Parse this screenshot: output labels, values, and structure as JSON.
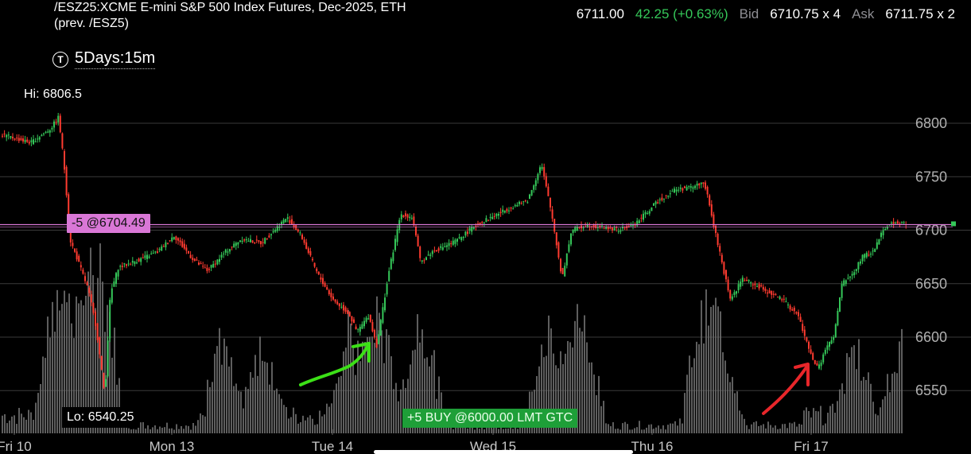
{
  "header": {
    "title_line1": "/ESZ25:XCME E-mini S&P 500 Index Futures, Dec-2025, ETH",
    "title_line2": "(prev. /ESZ5)",
    "last": "6711.00",
    "change": "42.25 (+0.63%)",
    "bid_label": "Bid",
    "bid": "6710.75 x 4",
    "ask_label": "Ask",
    "ask": "6711.75 x 2"
  },
  "timeframe": {
    "icon": "clock-icon",
    "label": "5Days:15m"
  },
  "hi_label": "Hi: 6806.5",
  "lo_label": "Lo: 6540.25",
  "orders": {
    "sell_label": "-5 @6704.49",
    "buy_label": "+5 BUY @6000.00 LMT GTC"
  },
  "colors": {
    "up": "#35c759",
    "down": "#ff3b30",
    "volume": "#6e6e6e",
    "grid": "#3a3a3a",
    "sell_line": "#d977d6",
    "buy_badge": "#1e9f38",
    "annotation_green": "#3ce017",
    "annotation_red": "#e8262a"
  },
  "chart_data": {
    "type": "candlestick",
    "ylim": [
      6510,
      6835
    ],
    "y_ticks": [
      6800,
      6750,
      6700,
      6650,
      6600,
      6550
    ],
    "x_labels": [
      "Fri 10",
      "Mon 13",
      "Tue 14",
      "Wed 15",
      "Thu 16",
      "Fri 17"
    ],
    "sell_order_price": 6704.49,
    "buy_order_price": 6000.0,
    "hi": 6806.5,
    "lo": 6540.25,
    "price_path": [
      [
        0,
        6790
      ],
      [
        40,
        6782
      ],
      [
        65,
        6795
      ],
      [
        75,
        6806
      ],
      [
        82,
        6760
      ],
      [
        90,
        6690
      ],
      [
        100,
        6670
      ],
      [
        112,
        6645
      ],
      [
        122,
        6610
      ],
      [
        133,
        6545
      ],
      [
        140,
        6640
      ],
      [
        150,
        6665
      ],
      [
        175,
        6672
      ],
      [
        200,
        6680
      ],
      [
        220,
        6695
      ],
      [
        245,
        6672
      ],
      [
        262,
        6662
      ],
      [
        285,
        6680
      ],
      [
        305,
        6692
      ],
      [
        330,
        6688
      ],
      [
        362,
        6712
      ],
      [
        380,
        6695
      ],
      [
        400,
        6660
      ],
      [
        420,
        6635
      ],
      [
        440,
        6622
      ],
      [
        450,
        6605
      ],
      [
        465,
        6620
      ],
      [
        475,
        6592
      ],
      [
        490,
        6660
      ],
      [
        505,
        6715
      ],
      [
        520,
        6712
      ],
      [
        530,
        6670
      ],
      [
        545,
        6680
      ],
      [
        575,
        6690
      ],
      [
        600,
        6705
      ],
      [
        640,
        6720
      ],
      [
        665,
        6728
      ],
      [
        682,
        6762
      ],
      [
        695,
        6715
      ],
      [
        708,
        6655
      ],
      [
        720,
        6700
      ],
      [
        740,
        6705
      ],
      [
        780,
        6700
      ],
      [
        800,
        6706
      ],
      [
        830,
        6728
      ],
      [
        850,
        6738
      ],
      [
        870,
        6740
      ],
      [
        887,
        6745
      ],
      [
        900,
        6700
      ],
      [
        912,
        6660
      ],
      [
        920,
        6635
      ],
      [
        935,
        6655
      ],
      [
        960,
        6645
      ],
      [
        985,
        6635
      ],
      [
        1005,
        6620
      ],
      [
        1020,
        6585
      ],
      [
        1030,
        6570
      ],
      [
        1040,
        6590
      ],
      [
        1050,
        6600
      ],
      [
        1060,
        6650
      ],
      [
        1075,
        6660
      ],
      [
        1085,
        6675
      ],
      [
        1100,
        6680
      ],
      [
        1112,
        6702
      ],
      [
        1128,
        6708
      ],
      [
        1140,
        6706
      ]
    ]
  }
}
